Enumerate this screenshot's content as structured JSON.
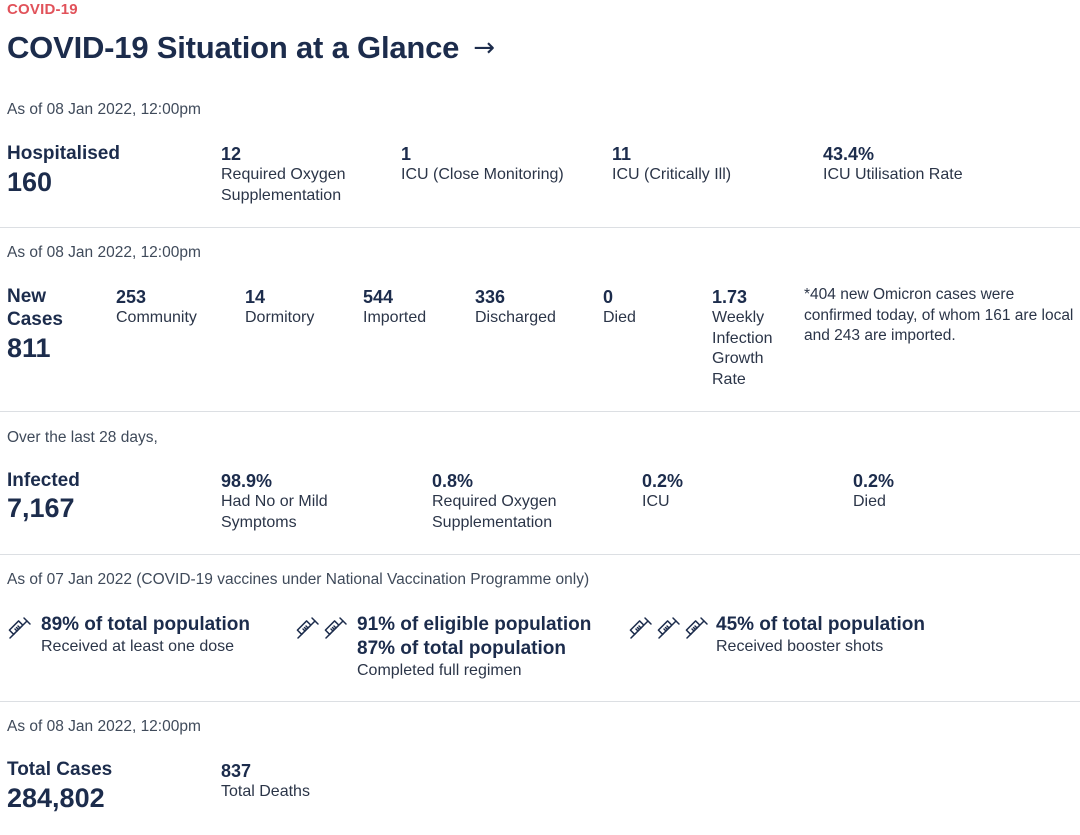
{
  "header": {
    "eyebrow": "COVID-19",
    "title": "COVID-19 Situation at a Glance",
    "arrow": "→"
  },
  "hospital": {
    "asof": "As of 08 Jan 2022, 12:00pm",
    "label": "Hospitalised",
    "value": "160",
    "stats": [
      {
        "value": "12",
        "label": "Required Oxygen Supplementation"
      },
      {
        "value": "1",
        "label": "ICU (Close Monitoring)"
      },
      {
        "value": "11",
        "label": "ICU (Critically Ill)"
      },
      {
        "value": "43.4%",
        "label": "ICU Utilisation Rate"
      }
    ]
  },
  "cases": {
    "asof": "As of 08 Jan 2022, 12:00pm",
    "label": "New Cases",
    "value": "811",
    "stats": [
      {
        "value": "253",
        "label": "Community"
      },
      {
        "value": "14",
        "label": "Dormitory"
      },
      {
        "value": "544",
        "label": "Imported"
      },
      {
        "value": "336",
        "label": "Discharged"
      },
      {
        "value": "0",
        "label": "Died"
      },
      {
        "value": "1.73",
        "label": "Weekly Infection Growth Rate"
      }
    ],
    "note": "*404 new Omicron cases were confirmed today, of whom 161 are local and 243 are imported."
  },
  "infected": {
    "asof": "Over the last 28 days,",
    "label": "Infected",
    "value": "7,167",
    "stats": [
      {
        "value": "98.9%",
        "label": "Had No or Mild Symptoms"
      },
      {
        "value": "0.8%",
        "label": "Required Oxygen Supplementation"
      },
      {
        "value": "0.2%",
        "label": "ICU"
      },
      {
        "value": "0.2%",
        "label": "Died"
      }
    ]
  },
  "vaccination": {
    "asof": "As of 07 Jan 2022 (COVID-19 vaccines under National Vaccination Programme only)",
    "items": [
      {
        "icon": "syringe-icon",
        "heads": [
          "89% of total population"
        ],
        "sub": "Received at least one dose"
      },
      {
        "icon": "syringe-icon",
        "heads": [
          "91% of eligible population",
          "87% of total population"
        ],
        "sub": "Completed full regimen"
      },
      {
        "icon": "syringe-icon",
        "heads": [
          "45% of total population"
        ],
        "sub": "Received booster shots"
      }
    ]
  },
  "totals": {
    "asof": "As of 08 Jan 2022, 12:00pm",
    "label": "Total Cases",
    "value": "284,802",
    "deaths_value": "837",
    "deaths_label": "Total Deaths"
  },
  "colors": {
    "accent": "#e1525a",
    "text": "#1c2c4c",
    "divider": "#dcdfe3"
  }
}
